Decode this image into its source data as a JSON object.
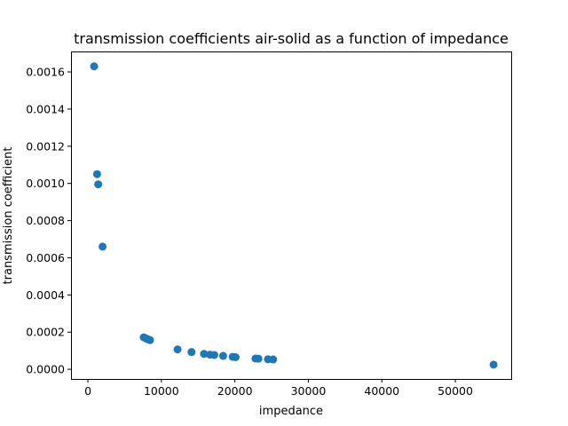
{
  "chart_data": {
    "type": "scatter",
    "title": "transmission coefficients air-solid as a function of impedance",
    "xlabel": "impedance",
    "ylabel": "transmission coefficient",
    "xlim": [
      -2300,
      57600
    ],
    "ylim": [
      -5.2e-05,
      0.00171
    ],
    "xticks": [
      0,
      10000,
      20000,
      30000,
      40000,
      50000
    ],
    "xtick_labels": [
      "0",
      "10000",
      "20000",
      "30000",
      "40000",
      "50000"
    ],
    "yticks": [
      0.0,
      0.0002,
      0.0004,
      0.0006,
      0.0008,
      0.001,
      0.0012,
      0.0014,
      0.0016
    ],
    "ytick_labels": [
      "0.0000",
      "0.0002",
      "0.0004",
      "0.0006",
      "0.0008",
      "0.0010",
      "0.0012",
      "0.0014",
      "0.0016"
    ],
    "grid": false,
    "marker_color": "#1f77b4",
    "series": [
      {
        "points": [
          {
            "x": 850,
            "y": 0.00163
          },
          {
            "x": 1250,
            "y": 0.00105
          },
          {
            "x": 1400,
            "y": 0.000995
          },
          {
            "x": 2000,
            "y": 0.00066
          },
          {
            "x": 7600,
            "y": 0.000172
          },
          {
            "x": 7900,
            "y": 0.000166
          },
          {
            "x": 8200,
            "y": 0.000161
          },
          {
            "x": 8450,
            "y": 0.000157
          },
          {
            "x": 12200,
            "y": 0.000107
          },
          {
            "x": 14100,
            "y": 9.3e-05
          },
          {
            "x": 15800,
            "y": 8.3e-05
          },
          {
            "x": 16600,
            "y": 7.9e-05
          },
          {
            "x": 17200,
            "y": 7.7e-05
          },
          {
            "x": 18400,
            "y": 7.2e-05
          },
          {
            "x": 19700,
            "y": 6.7e-05
          },
          {
            "x": 20100,
            "y": 6.5e-05
          },
          {
            "x": 22800,
            "y": 5.8e-05
          },
          {
            "x": 23200,
            "y": 5.7e-05
          },
          {
            "x": 24500,
            "y": 5.4e-05
          },
          {
            "x": 25200,
            "y": 5.3e-05
          },
          {
            "x": 55200,
            "y": 2.5e-05
          }
        ]
      }
    ]
  }
}
